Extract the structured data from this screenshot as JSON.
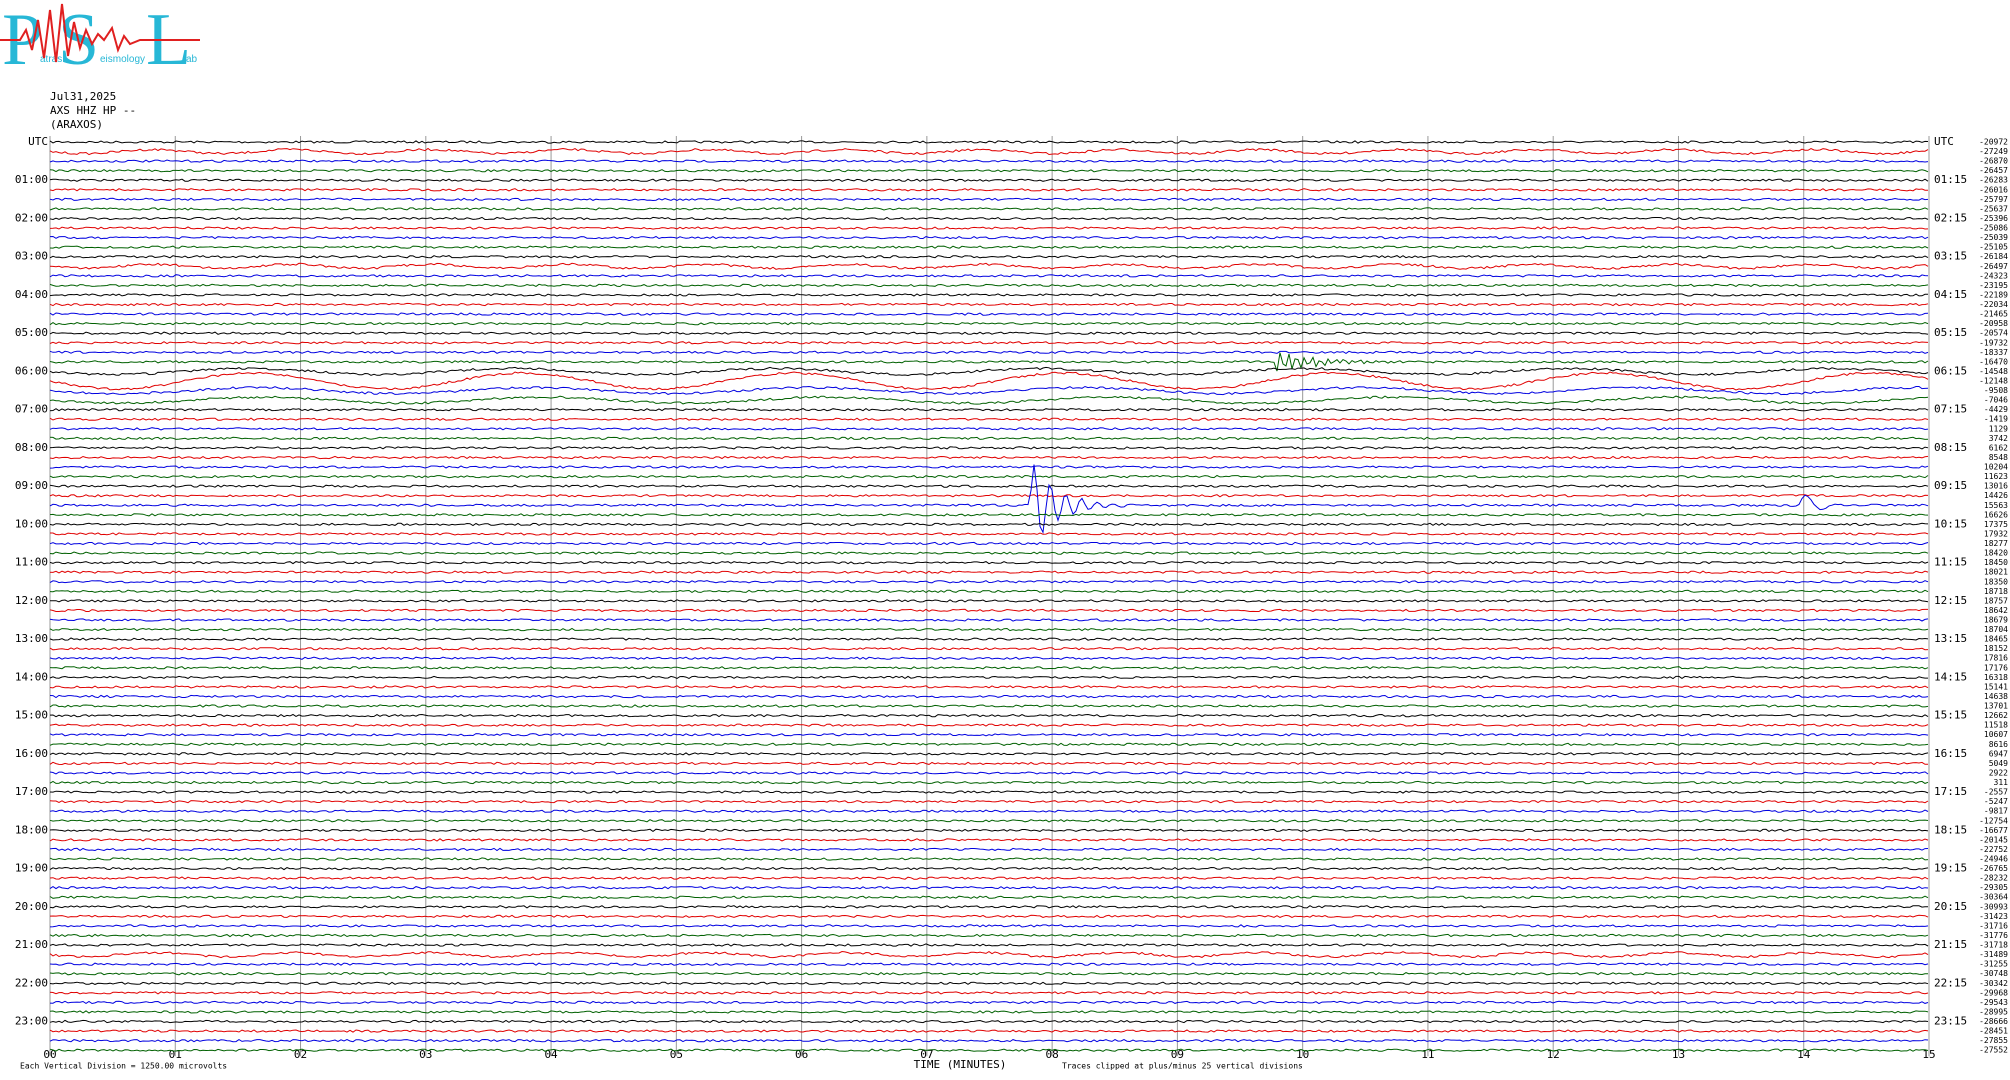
{
  "logo": {
    "letters": [
      "P",
      "S",
      "L"
    ],
    "words": [
      "atras",
      "eismology",
      "ab"
    ]
  },
  "header": {
    "date": "Jul31,2025",
    "channel": "AXS HHZ HP --",
    "station": "(ARAXOS)"
  },
  "left_labels": [
    "UTC",
    "01:00",
    "02:00",
    "03:00",
    "04:00",
    "05:00",
    "06:00",
    "07:00",
    "08:00",
    "09:00",
    "10:00",
    "11:00",
    "12:00",
    "13:00",
    "14:00",
    "15:00",
    "16:00",
    "17:00",
    "18:00",
    "19:00",
    "20:00",
    "21:00",
    "22:00",
    "23:00"
  ],
  "right_labels": [
    "UTC",
    "01:15",
    "02:15",
    "03:15",
    "04:15",
    "05:15",
    "06:15",
    "07:15",
    "08:15",
    "09:15",
    "10:15",
    "11:15",
    "12:15",
    "13:15",
    "14:15",
    "15:15",
    "16:15",
    "17:15",
    "18:15",
    "19:15",
    "20:15",
    "21:15",
    "22:15",
    "23:15"
  ],
  "offsets": [
    "-20972",
    "-27249",
    "-26870",
    "-26457",
    "-26283",
    "-26016",
    "-25797",
    "-25637",
    "-25396",
    "-25086",
    "-25039",
    "-25105",
    "-26184",
    "-26497",
    "-24323",
    "-23195",
    "-22189",
    "-22034",
    "-21465",
    "-20958",
    "-20574",
    "-19732",
    "-18337",
    "-16470",
    "-14548",
    "-12148",
    "-9508",
    "-7046",
    "-4429",
    "-1419",
    "1129",
    "3742",
    "6162",
    "8548",
    "10204",
    "11623",
    "13016",
    "14426",
    "15563",
    "16626",
    "17375",
    "17932",
    "18277",
    "18420",
    "18450",
    "18021",
    "18350",
    "18718",
    "18757",
    "18642",
    "18679",
    "18704",
    "18465",
    "18152",
    "17816",
    "17176",
    "16318",
    "15141",
    "14638",
    "13701",
    "12662",
    "11518",
    "10607",
    "8616",
    "6947",
    "5049",
    "2922",
    "311",
    "-2557",
    "-5247",
    "-9817",
    "-12754",
    "-16677",
    "-20145",
    "-22752",
    "-24946",
    "-26765",
    "-28232",
    "-29305",
    "-30364",
    "-30993",
    "-31423",
    "-31716",
    "-31776",
    "-31718",
    "-31489",
    "-31255",
    "-30748",
    "-30342",
    "-29968",
    "-29543",
    "-28995",
    "-28666",
    "-28451",
    "-27855",
    "-27552"
  ],
  "x_labels": [
    "00",
    "01",
    "02",
    "03",
    "04",
    "05",
    "06",
    "07",
    "08",
    "09",
    "10",
    "11",
    "12",
    "13",
    "14",
    "15"
  ],
  "x_title": "TIME (MINUTES)",
  "footer": {
    "scale": "Each Vertical Division = 1250.00 microvolts",
    "clip": "Traces clipped at plus/minus 25 vertical divisions"
  }
}
